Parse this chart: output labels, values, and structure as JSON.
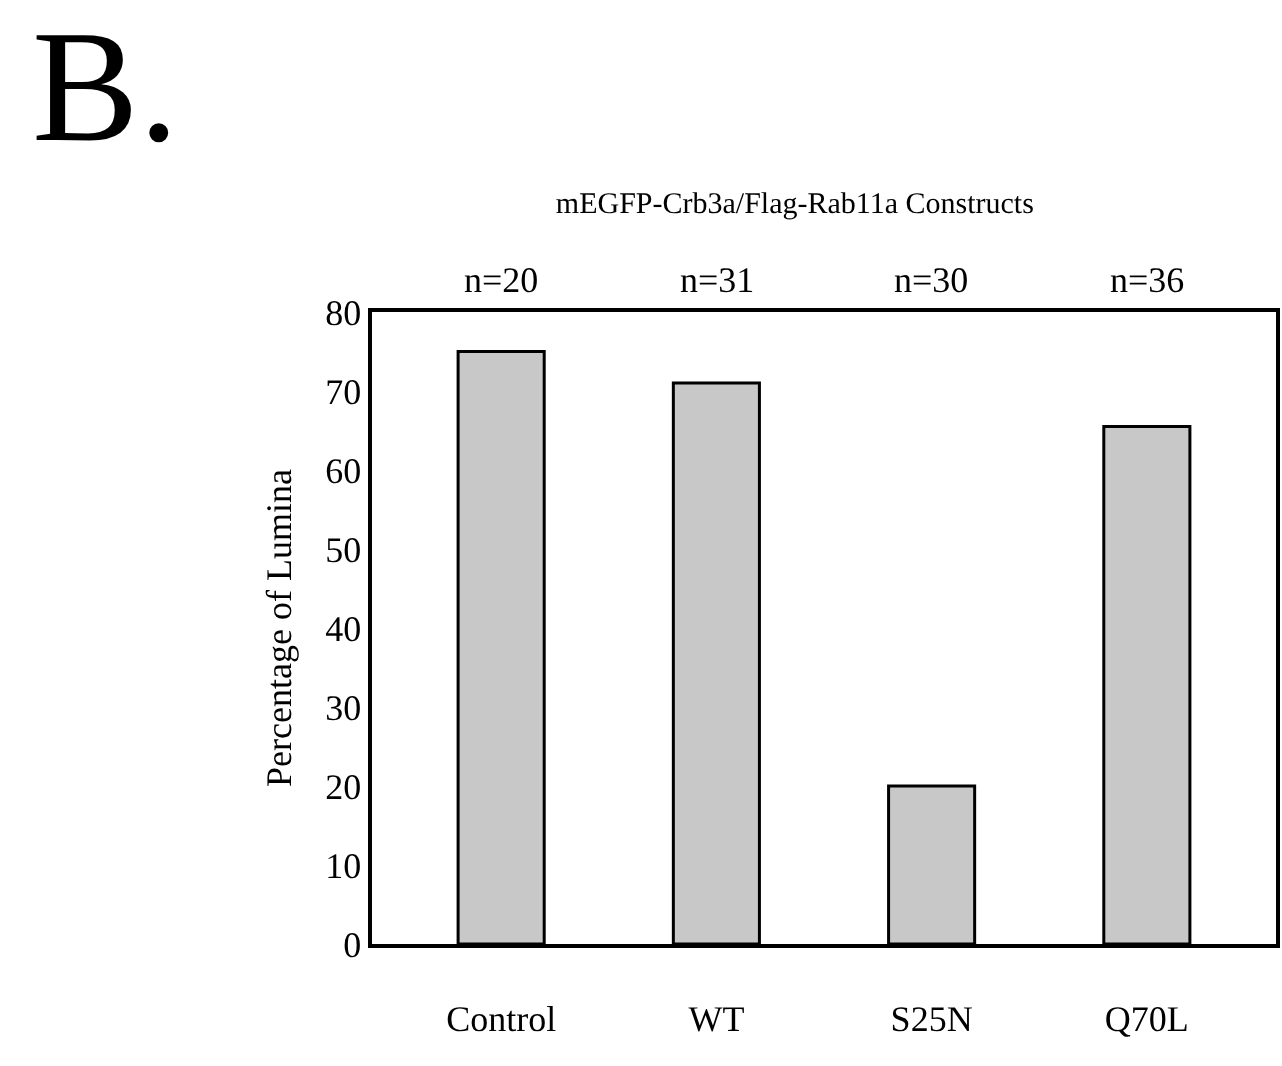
{
  "chart_data": {
    "type": "bar",
    "title": "mEGFP-Crb3a/Flag-Rab11a Constructs",
    "ylabel": "Percentage of Lumina",
    "categories": [
      "Control",
      "WT",
      "S25N",
      "Q70L"
    ],
    "values": [
      75,
      71,
      20,
      65.5
    ],
    "color": "#c8c8c8",
    "ylim": [
      0,
      80
    ],
    "yticks": [
      0,
      10,
      20,
      30,
      40,
      50,
      60,
      70,
      80
    ],
    "grid": false,
    "legend": false,
    "annotations": [
      "B.",
      "n=20",
      "n=31",
      "n=30",
      "n=36"
    ]
  }
}
